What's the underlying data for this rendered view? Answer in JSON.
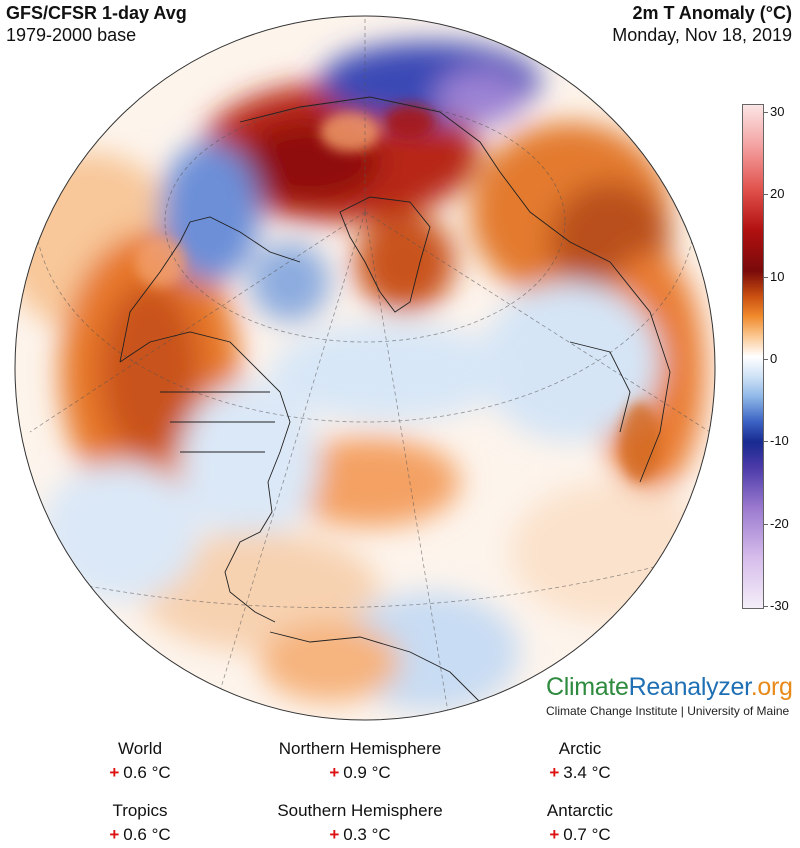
{
  "header": {
    "title": "GFS/CFSR 1-day Avg",
    "base": "1979-2000 base",
    "variable": "2m T Anomaly (°C)",
    "date": "Monday, Nov 18, 2019"
  },
  "colorbar": {
    "ticks": [
      "30",
      "20",
      "10",
      "0",
      "-10",
      "-20",
      "-30"
    ],
    "colors": [
      "#fbe5e5",
      "#b01010",
      "#f08a2c",
      "#ffffff",
      "#3b62c4",
      "#9a79cf",
      "#f4eef8"
    ]
  },
  "brand": {
    "part1": "Climate",
    "part2": "Reanalyzer",
    "part3": ".org",
    "sub": "Climate Change Institute | University of Maine"
  },
  "stats": [
    {
      "label": "World",
      "sign": "+",
      "value": "0.6 °C"
    },
    {
      "label": "Northern Hemisphere",
      "sign": "+",
      "value": "0.9 °C"
    },
    {
      "label": "Arctic",
      "sign": "+",
      "value": "3.4 °C"
    },
    {
      "label": "Tropics",
      "sign": "+",
      "value": "0.6 °C"
    },
    {
      "label": "Southern Hemisphere",
      "sign": "+",
      "value": "0.3 °C"
    },
    {
      "label": "Antarctic",
      "sign": "+",
      "value": "0.7 °C"
    }
  ]
}
